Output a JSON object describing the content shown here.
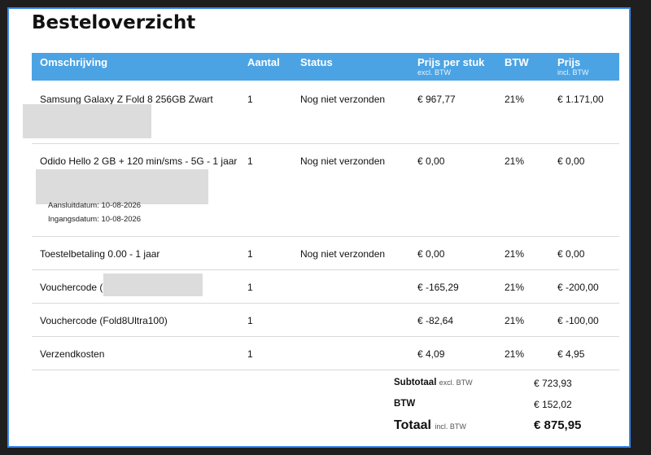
{
  "title": "Besteloverzicht",
  "columns": {
    "description": "Omschrijving",
    "quantity": "Aantal",
    "status": "Status",
    "unit_price": "Prijs per stuk",
    "unit_price_sub": "excl. BTW",
    "vat": "BTW",
    "price": "Prijs",
    "price_sub": "incl. BTW"
  },
  "rows": [
    {
      "description": "Samsung Galaxy Z Fold 8 256GB Zwart",
      "quantity": "1",
      "status": "Nog niet verzonden",
      "unit_price": "€ 967,77",
      "vat": "21%",
      "price": "€ 1.171,00"
    },
    {
      "description": "Odido Hello 2 GB + 120 min/sms - 5G - 1 jaar",
      "quantity": "1",
      "status": "Nog niet verzonden",
      "unit_price": "€ 0,00",
      "vat": "21%",
      "price": "€ 0,00",
      "date1": "Aansluitdatum: 10-08-2026",
      "date2": "Ingangsdatum: 10-08-2026"
    },
    {
      "description": "Toestelbetaling 0.00 - 1 jaar",
      "quantity": "1",
      "status": "Nog niet verzonden",
      "unit_price": "€ 0,00",
      "vat": "21%",
      "price": "€ 0,00"
    },
    {
      "description": "Vouchercode (",
      "quantity": "1",
      "status": "",
      "unit_price": "€ -165,29",
      "vat": "21%",
      "price": "€ -200,00"
    },
    {
      "description": "Vouchercode (Fold8Ultra100)",
      "quantity": "1",
      "status": "",
      "unit_price": "€ -82,64",
      "vat": "21%",
      "price": "€ -100,00"
    },
    {
      "description": "Verzendkosten",
      "quantity": "1",
      "status": "",
      "unit_price": "€ 4,09",
      "vat": "21%",
      "price": "€ 4,95"
    }
  ],
  "summary": {
    "subtotal_label": "Subtotaal",
    "subtotal_sub": "excl. BTW",
    "subtotal_value": "€ 723,93",
    "vat_label": "BTW",
    "vat_value": "€ 152,02",
    "total_label": "Totaal",
    "total_sub": "incl. BTW",
    "total_value": "€ 875,95"
  },
  "colors": {
    "header_bg": "#4ba3e3",
    "panel_border": "#3a86e6",
    "redaction": "#dcdcdc"
  }
}
